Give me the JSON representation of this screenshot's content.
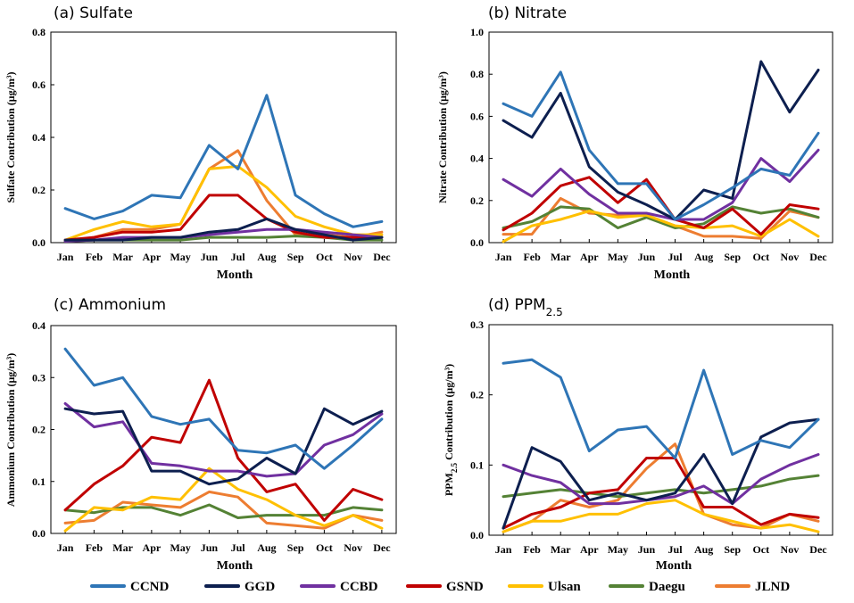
{
  "figure": {
    "legend": [
      {
        "name": "CCND",
        "color": "#2E75B6"
      },
      {
        "name": "GGD",
        "color": "#0D1F4F"
      },
      {
        "name": "CCBD",
        "color": "#7030A0"
      },
      {
        "name": "GSND",
        "color": "#C00000"
      },
      {
        "name": "Ulsan",
        "color": "#FFC000"
      },
      {
        "name": "Daegu",
        "color": "#548235"
      },
      {
        "name": "JLND",
        "color": "#ED7D31"
      }
    ]
  },
  "chart_data": [
    {
      "type": "line",
      "title": "(a) Sulfate",
      "xlabel": "Month",
      "ylabel": "Sulfate Contribution (μg/m³)",
      "categories": [
        "Jan",
        "Feb",
        "Mar",
        "Apr",
        "May",
        "Jun",
        "Jul",
        "Aug",
        "Sep",
        "Oct",
        "Nov",
        "Dec"
      ],
      "ylim": [
        0,
        0.8
      ],
      "yticks": [
        "0.0",
        "0.2",
        "0.4",
        "0.6",
        "0.8"
      ],
      "series": [
        {
          "name": "CCND",
          "values": [
            0.13,
            0.09,
            0.12,
            0.18,
            0.17,
            0.37,
            0.28,
            0.56,
            0.18,
            0.11,
            0.06,
            0.08
          ]
        },
        {
          "name": "GGD",
          "values": [
            0.01,
            0.01,
            0.01,
            0.02,
            0.02,
            0.04,
            0.05,
            0.09,
            0.05,
            0.03,
            0.01,
            0.02
          ]
        },
        {
          "name": "CCBD",
          "values": [
            0.005,
            0.01,
            0.02,
            0.02,
            0.02,
            0.03,
            0.04,
            0.05,
            0.05,
            0.04,
            0.03,
            0.02
          ]
        },
        {
          "name": "GSND",
          "values": [
            0.01,
            0.02,
            0.04,
            0.04,
            0.05,
            0.18,
            0.18,
            0.09,
            0.04,
            0.02,
            0.02,
            0.02
          ]
        },
        {
          "name": "Ulsan",
          "values": [
            0.01,
            0.05,
            0.08,
            0.06,
            0.07,
            0.28,
            0.29,
            0.21,
            0.1,
            0.06,
            0.03,
            0.03
          ]
        },
        {
          "name": "Daegu",
          "values": [
            0.005,
            0.01,
            0.01,
            0.01,
            0.01,
            0.02,
            0.02,
            0.02,
            0.025,
            0.02,
            0.01,
            0.01
          ]
        },
        {
          "name": "JLND",
          "values": [
            0.005,
            0.02,
            0.05,
            0.05,
            0.07,
            0.28,
            0.35,
            0.16,
            0.03,
            0.03,
            0.02,
            0.04
          ]
        }
      ]
    },
    {
      "type": "line",
      "title": "(b) Nitrate",
      "xlabel": "Month",
      "ylabel": "Nitrate Contribution (μg/m³)",
      "categories": [
        "Jan",
        "Feb",
        "Mar",
        "Apr",
        "May",
        "Jun",
        "Jul",
        "Aug",
        "Sep",
        "Oct",
        "Nov",
        "Dec"
      ],
      "ylim": [
        0,
        1.0
      ],
      "yticks": [
        "0.0",
        "0.2",
        "0.4",
        "0.6",
        "0.8",
        "1.0"
      ],
      "series": [
        {
          "name": "CCND",
          "values": [
            0.66,
            0.6,
            0.81,
            0.44,
            0.28,
            0.28,
            0.11,
            0.18,
            0.26,
            0.35,
            0.32,
            0.52
          ]
        },
        {
          "name": "GGD",
          "values": [
            0.58,
            0.5,
            0.71,
            0.36,
            0.24,
            0.18,
            0.11,
            0.25,
            0.21,
            0.86,
            0.62,
            0.82
          ]
        },
        {
          "name": "CCBD",
          "values": [
            0.3,
            0.22,
            0.35,
            0.23,
            0.14,
            0.14,
            0.11,
            0.11,
            0.19,
            0.4,
            0.29,
            0.44
          ]
        },
        {
          "name": "GSND",
          "values": [
            0.06,
            0.14,
            0.27,
            0.31,
            0.19,
            0.3,
            0.11,
            0.07,
            0.16,
            0.04,
            0.18,
            0.16
          ]
        },
        {
          "name": "Ulsan",
          "values": [
            0.005,
            0.08,
            0.11,
            0.15,
            0.12,
            0.13,
            0.08,
            0.07,
            0.08,
            0.03,
            0.11,
            0.03
          ]
        },
        {
          "name": "Daegu",
          "values": [
            0.07,
            0.1,
            0.17,
            0.16,
            0.07,
            0.12,
            0.07,
            0.09,
            0.17,
            0.14,
            0.16,
            0.12
          ]
        },
        {
          "name": "JLND",
          "values": [
            0.04,
            0.04,
            0.21,
            0.14,
            0.13,
            0.13,
            0.08,
            0.03,
            0.03,
            0.02,
            0.15,
            0.12
          ]
        }
      ]
    },
    {
      "type": "line",
      "title": "(c) Ammonium",
      "xlabel": "Month",
      "ylabel": "Ammonium Contribution (μg/m³)",
      "categories": [
        "Jan",
        "Feb",
        "Mar",
        "Apr",
        "May",
        "Jun",
        "Jul",
        "Aug",
        "Sep",
        "Oct",
        "Nov",
        "Dec"
      ],
      "ylim": [
        0,
        0.4
      ],
      "yticks": [
        "0.0",
        "0.1",
        "0.2",
        "0.3",
        "0.4"
      ],
      "series": [
        {
          "name": "CCND",
          "values": [
            0.355,
            0.285,
            0.3,
            0.225,
            0.21,
            0.22,
            0.16,
            0.155,
            0.17,
            0.125,
            0.17,
            0.22
          ]
        },
        {
          "name": "GGD",
          "values": [
            0.24,
            0.23,
            0.235,
            0.12,
            0.12,
            0.095,
            0.105,
            0.145,
            0.115,
            0.24,
            0.21,
            0.235
          ]
        },
        {
          "name": "CCBD",
          "values": [
            0.25,
            0.205,
            0.215,
            0.135,
            0.13,
            0.12,
            0.12,
            0.11,
            0.115,
            0.17,
            0.19,
            0.23
          ]
        },
        {
          "name": "GSND",
          "values": [
            0.045,
            0.095,
            0.13,
            0.185,
            0.175,
            0.295,
            0.145,
            0.08,
            0.095,
            0.025,
            0.085,
            0.065
          ]
        },
        {
          "name": "Ulsan",
          "values": [
            0.005,
            0.05,
            0.045,
            0.07,
            0.065,
            0.125,
            0.085,
            0.065,
            0.035,
            0.015,
            0.035,
            0.01
          ]
        },
        {
          "name": "Daegu",
          "values": [
            0.045,
            0.04,
            0.05,
            0.05,
            0.035,
            0.055,
            0.03,
            0.035,
            0.035,
            0.035,
            0.05,
            0.045
          ]
        },
        {
          "name": "JLND",
          "values": [
            0.02,
            0.025,
            0.06,
            0.055,
            0.05,
            0.08,
            0.07,
            0.02,
            0.015,
            0.01,
            0.035,
            0.025
          ]
        }
      ]
    },
    {
      "type": "line",
      "title": "(d) PPM",
      "title_sub": "2.5",
      "xlabel": "Month",
      "ylabel": "PPM",
      "ylabel_sub": "2.5",
      "ylabel_rest": " Contribution (μg/m³)",
      "categories": [
        "Jan",
        "Feb",
        "Mar",
        "Apr",
        "May",
        "Jun",
        "Jul",
        "Aug",
        "Sep",
        "Oct",
        "Nov",
        "Dec"
      ],
      "ylim": [
        0,
        0.3
      ],
      "yticks": [
        "0.0",
        "0.1",
        "0.2",
        "0.3"
      ],
      "series": [
        {
          "name": "CCND",
          "values": [
            0.245,
            0.25,
            0.225,
            0.12,
            0.15,
            0.155,
            0.11,
            0.235,
            0.115,
            0.135,
            0.125,
            0.165
          ]
        },
        {
          "name": "GGD",
          "values": [
            0.01,
            0.125,
            0.105,
            0.05,
            0.06,
            0.05,
            0.06,
            0.115,
            0.045,
            0.14,
            0.16,
            0.165
          ]
        },
        {
          "name": "CCBD",
          "values": [
            0.1,
            0.085,
            0.075,
            0.045,
            0.045,
            0.05,
            0.055,
            0.07,
            0.045,
            0.08,
            0.1,
            0.115
          ]
        },
        {
          "name": "GSND",
          "values": [
            0.01,
            0.03,
            0.04,
            0.06,
            0.065,
            0.11,
            0.11,
            0.04,
            0.04,
            0.015,
            0.03,
            0.025
          ]
        },
        {
          "name": "Ulsan",
          "values": [
            0.005,
            0.02,
            0.02,
            0.03,
            0.03,
            0.045,
            0.05,
            0.03,
            0.02,
            0.01,
            0.015,
            0.005
          ]
        },
        {
          "name": "Daegu",
          "values": [
            0.055,
            0.06,
            0.065,
            0.06,
            0.055,
            0.06,
            0.065,
            0.06,
            0.065,
            0.07,
            0.08,
            0.085
          ]
        },
        {
          "name": "JLND",
          "values": [
            0.005,
            0.02,
            0.05,
            0.04,
            0.05,
            0.095,
            0.13,
            0.03,
            0.015,
            0.01,
            0.03,
            0.02
          ]
        }
      ]
    }
  ]
}
